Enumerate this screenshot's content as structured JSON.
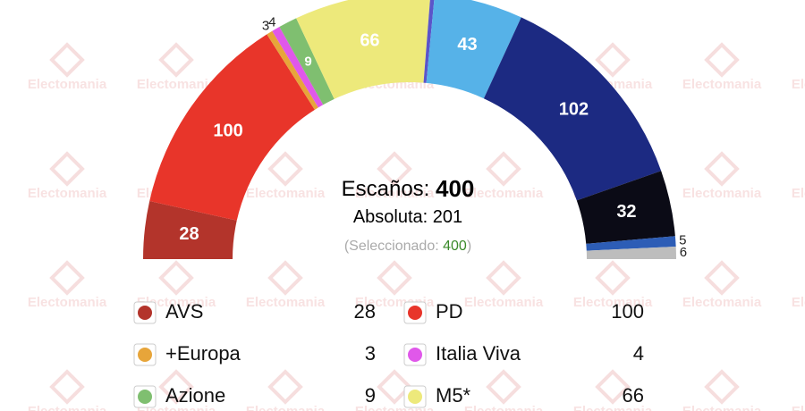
{
  "chart_data": {
    "type": "hemicycle",
    "watermark": "Electomania",
    "categories": [
      "AVS",
      "PD",
      "+Europa",
      "Italia Viva",
      "Azione",
      "M5*",
      null,
      null,
      null,
      null,
      null,
      null
    ],
    "values": [
      28,
      100,
      3,
      4,
      9,
      66,
      2,
      43,
      102,
      32,
      5,
      6
    ],
    "colors": [
      "#b3342b",
      "#e8352a",
      "#e7a53a",
      "#e058ea",
      "#7fbf70",
      "#ede97b",
      "#5b55c9",
      "#56b2e8",
      "#1c2a82",
      "#0b0b16",
      "#2d5db6",
      "#bdbdbd"
    ],
    "total_label": "Escaños:",
    "total": 400,
    "majority_label": "Absoluta:",
    "majority": 201,
    "selected_label": "(Seleccionado:",
    "selected": 400,
    "selected_close": ")"
  }
}
